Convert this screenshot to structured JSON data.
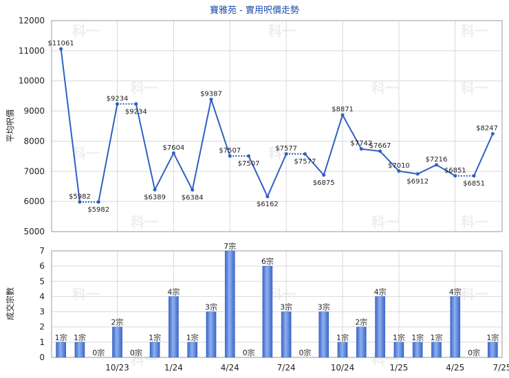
{
  "title": "寶雅苑 - 實用呎價走勢",
  "watermark_text": "科一",
  "colors": {
    "line": "#2f5fc2",
    "bar": "#3a66c8",
    "bar_light": "#8fb0ee",
    "title": "#1a4aa8",
    "grid": "#d8d8d8"
  },
  "chart_data": [
    {
      "type": "line",
      "ylabel": "平均呎價",
      "ylim": [
        5000,
        12000
      ],
      "yticks": [
        5000,
        6000,
        7000,
        8000,
        9000,
        10000,
        11000,
        12000
      ],
      "grid": true,
      "series": [
        {
          "points": [
            {
              "x": 1,
              "y": 11061,
              "label": "$11061"
            },
            {
              "x": 2,
              "y": 5982,
              "label": "$5982"
            },
            {
              "x": 3,
              "y": 5982,
              "label": "$5982"
            },
            {
              "x": 4,
              "y": 9234,
              "label": "$9234"
            },
            {
              "x": 5,
              "y": 9234,
              "label": "$9234"
            },
            {
              "x": 6,
              "y": 6389,
              "label": "$6389"
            },
            {
              "x": 7,
              "y": 7604,
              "label": "$7604"
            },
            {
              "x": 8,
              "y": 6384,
              "label": "$6384"
            },
            {
              "x": 9,
              "y": 9387,
              "label": "$9387"
            },
            {
              "x": 10,
              "y": 7507,
              "label": "$7507"
            },
            {
              "x": 11,
              "y": 7507,
              "label": "$7507"
            },
            {
              "x": 12,
              "y": 6162,
              "label": "$6162"
            },
            {
              "x": 13,
              "y": 7577,
              "label": "$7577"
            },
            {
              "x": 14,
              "y": 7577,
              "label": "$7577"
            },
            {
              "x": 15,
              "y": 6875,
              "label": "$6875"
            },
            {
              "x": 16,
              "y": 8871,
              "label": "$8871"
            },
            {
              "x": 17,
              "y": 7742,
              "label": "$7742"
            },
            {
              "x": 18,
              "y": 7667,
              "label": "$7667"
            },
            {
              "x": 19,
              "y": 7010,
              "label": "$7010"
            },
            {
              "x": 20,
              "y": 6912,
              "label": "$6912"
            },
            {
              "x": 21,
              "y": 7216,
              "label": "$7216"
            },
            {
              "x": 22,
              "y": 6851,
              "label": "$6851"
            },
            {
              "x": 23,
              "y": 6851,
              "label": "$6851"
            },
            {
              "x": 24,
              "y": 8247,
              "label": "$8247"
            }
          ],
          "dotted_segments": [
            [
              2,
              3
            ],
            [
              4,
              5
            ],
            [
              10,
              11
            ],
            [
              13,
              14
            ],
            [
              22,
              23
            ]
          ]
        }
      ]
    },
    {
      "type": "bar",
      "ylabel": "成交宗數",
      "ylim": [
        0,
        7
      ],
      "yticks": [
        0,
        1,
        2,
        3,
        4,
        5,
        6,
        7
      ],
      "grid": true,
      "values": [
        1,
        1,
        0,
        2,
        0,
        1,
        4,
        1,
        3,
        7,
        0,
        6,
        3,
        0,
        3,
        1,
        2,
        4,
        1,
        1,
        1,
        4,
        0,
        1
      ],
      "value_labels": [
        "1宗",
        "1宗",
        "0宗",
        "2宗",
        "0宗",
        "1宗",
        "4宗",
        "1宗",
        "3宗",
        "7宗",
        "0宗",
        "6宗",
        "3宗",
        "0宗",
        "3宗",
        "1宗",
        "2宗",
        "4宗",
        "1宗",
        "1宗",
        "1宗",
        "4宗",
        "0宗",
        "1宗"
      ],
      "x_ticks": [
        {
          "x": 3.5,
          "label": "10/23"
        },
        {
          "x": 6.5,
          "label": "1/24"
        },
        {
          "x": 9.5,
          "label": "4/24"
        },
        {
          "x": 12.5,
          "label": "7/24"
        },
        {
          "x": 15.5,
          "label": "10/24"
        },
        {
          "x": 18.5,
          "label": "1/25"
        },
        {
          "x": 21.5,
          "label": "4/25"
        },
        {
          "x": 24,
          "label": "7/25"
        }
      ],
      "x_grid": [
        3.5,
        6.5,
        9.5,
        12.5,
        15.5,
        18.5,
        21.5,
        24.5
      ]
    }
  ]
}
